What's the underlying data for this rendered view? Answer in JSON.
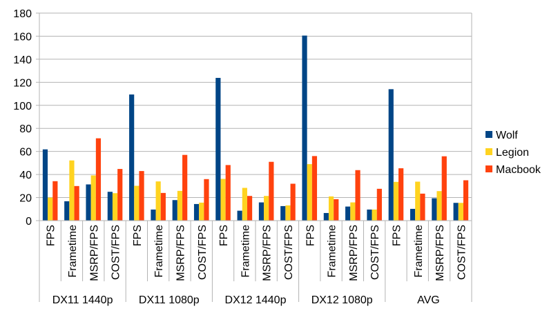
{
  "chart_data": {
    "type": "bar",
    "title": "",
    "xlabel": "",
    "ylabel": "",
    "ylim": [
      0,
      180
    ],
    "yticks": [
      0,
      20,
      40,
      60,
      80,
      100,
      120,
      140,
      160,
      180
    ],
    "grid": true,
    "legend_position": "right",
    "groups": [
      "DX11 1440p",
      "DX11 1080p",
      "DX12 1440p",
      "DX12 1080p",
      "AVG"
    ],
    "subcategories": [
      "FPS",
      "Frametime",
      "MSRP/FPS",
      "COST/FPS"
    ],
    "series": [
      {
        "name": "Wolf",
        "color": "#004586",
        "values": [
          61.8,
          16.8,
          31.4,
          25,
          109.4,
          9.6,
          17.8,
          14.4,
          123.8,
          8.6,
          15.8,
          12.6,
          160.5,
          6.6,
          12.2,
          9.6,
          114,
          10.2,
          19.4,
          15.4
        ]
      },
      {
        "name": "Legion",
        "color": "#ffd320",
        "values": [
          20,
          52.2,
          39.2,
          23.8,
          30.2,
          34,
          25.8,
          15.6,
          36.2,
          28.4,
          21.4,
          13.2,
          49,
          21,
          15.8,
          9.6,
          33.6,
          33.8,
          25.6,
          15.4
        ]
      },
      {
        "name": "Macbook",
        "color": "#ff420e",
        "values": [
          34.2,
          30,
          71.4,
          44.8,
          43,
          24,
          57,
          36,
          48.2,
          21.4,
          51,
          32,
          56,
          18.6,
          43.8,
          27.6,
          45.4,
          23.4,
          55.8,
          35
        ]
      }
    ]
  }
}
